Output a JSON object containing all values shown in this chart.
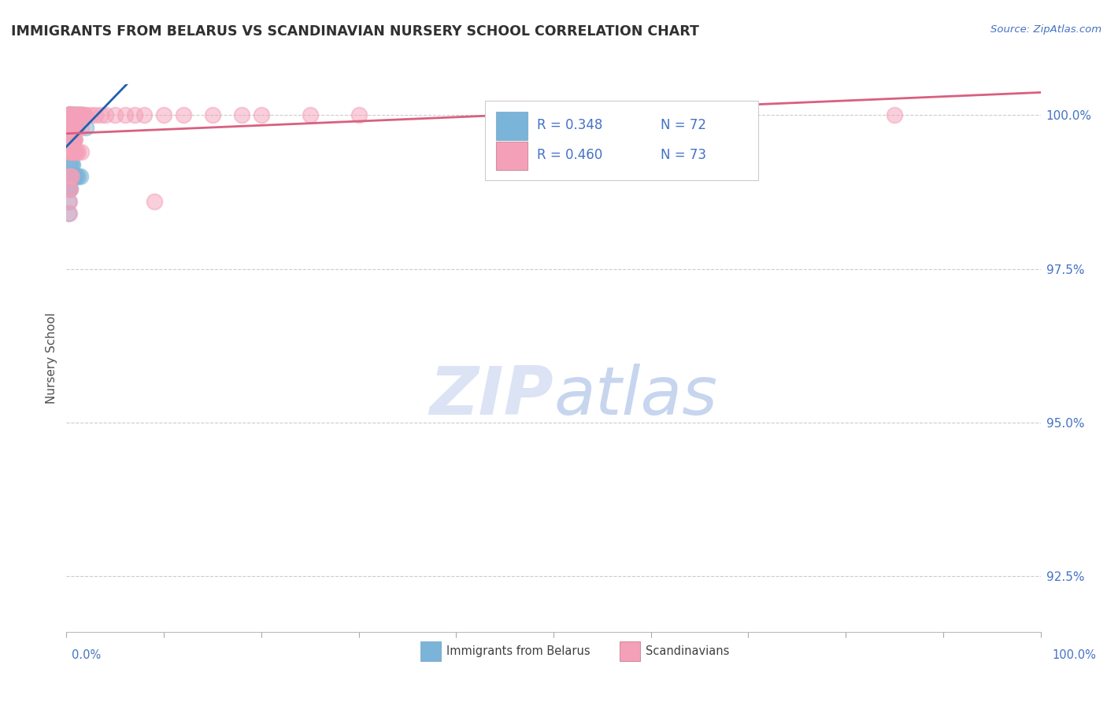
{
  "title": "IMMIGRANTS FROM BELARUS VS SCANDINAVIAN NURSERY SCHOOL CORRELATION CHART",
  "source": "Source: ZipAtlas.com",
  "ylabel": "Nursery School",
  "legend_r1": "R = 0.348",
  "legend_n1": "N = 72",
  "legend_r2": "R = 0.460",
  "legend_n2": "N = 73",
  "blue_color": "#7ab4d8",
  "pink_color": "#f4a0b8",
  "blue_line_color": "#2060b0",
  "pink_line_color": "#d86080",
  "title_color": "#303030",
  "axis_label_color": "#505050",
  "tick_label_color": "#4472c4",
  "watermark_color": "#ccd8f0",
  "grid_color": "#cccccc",
  "blue_x": [
    0.002,
    0.002,
    0.002,
    0.002,
    0.002,
    0.002,
    0.002,
    0.002,
    0.003,
    0.003,
    0.003,
    0.003,
    0.003,
    0.003,
    0.003,
    0.003,
    0.003,
    0.003,
    0.004,
    0.004,
    0.004,
    0.004,
    0.004,
    0.004,
    0.004,
    0.004,
    0.005,
    0.005,
    0.005,
    0.005,
    0.005,
    0.005,
    0.005,
    0.006,
    0.006,
    0.006,
    0.006,
    0.006,
    0.007,
    0.007,
    0.007,
    0.007,
    0.008,
    0.008,
    0.008,
    0.009,
    0.009,
    0.01,
    0.01,
    0.011,
    0.012,
    0.013,
    0.014,
    0.015,
    0.016,
    0.002,
    0.003,
    0.004,
    0.005,
    0.006,
    0.007,
    0.008,
    0.009,
    0.01,
    0.012,
    0.014,
    0.002,
    0.003,
    0.004,
    0.02,
    0.002,
    0.002
  ],
  "blue_y": [
    1.0,
    1.0,
    1.0,
    1.0,
    1.0,
    1.0,
    0.998,
    0.998,
    1.0,
    1.0,
    1.0,
    1.0,
    0.998,
    0.998,
    0.996,
    0.994,
    0.992,
    0.99,
    1.0,
    1.0,
    1.0,
    0.998,
    0.998,
    0.996,
    0.994,
    0.992,
    1.0,
    1.0,
    0.998,
    0.998,
    0.996,
    0.994,
    0.992,
    1.0,
    0.998,
    0.996,
    0.994,
    0.992,
    1.0,
    0.998,
    0.996,
    0.994,
    1.0,
    0.998,
    0.996,
    1.0,
    0.998,
    1.0,
    0.998,
    1.0,
    1.0,
    1.0,
    1.0,
    1.0,
    1.0,
    0.99,
    0.99,
    0.99,
    0.99,
    0.99,
    0.99,
    0.99,
    0.99,
    0.99,
    0.99,
    0.99,
    0.988,
    0.988,
    0.988,
    0.998,
    0.986,
    0.984
  ],
  "pink_x": [
    0.003,
    0.003,
    0.003,
    0.003,
    0.003,
    0.003,
    0.004,
    0.004,
    0.004,
    0.004,
    0.004,
    0.005,
    0.005,
    0.005,
    0.005,
    0.006,
    0.006,
    0.006,
    0.006,
    0.007,
    0.007,
    0.007,
    0.008,
    0.008,
    0.008,
    0.009,
    0.009,
    0.009,
    0.01,
    0.01,
    0.011,
    0.012,
    0.013,
    0.015,
    0.015,
    0.016,
    0.017,
    0.018,
    0.02,
    0.025,
    0.03,
    0.035,
    0.04,
    0.05,
    0.06,
    0.07,
    0.08,
    0.09,
    0.1,
    0.12,
    0.15,
    0.18,
    0.2,
    0.25,
    0.3,
    0.003,
    0.004,
    0.005,
    0.006,
    0.007,
    0.008,
    0.009,
    0.01,
    0.012,
    0.015,
    0.003,
    0.004,
    0.005,
    0.003,
    0.004,
    0.003,
    0.003,
    0.85
  ],
  "pink_y": [
    1.0,
    1.0,
    1.0,
    1.0,
    0.998,
    0.998,
    1.0,
    1.0,
    1.0,
    0.998,
    0.998,
    1.0,
    1.0,
    0.998,
    0.996,
    1.0,
    1.0,
    0.998,
    0.996,
    1.0,
    0.998,
    0.996,
    1.0,
    0.998,
    0.996,
    1.0,
    0.998,
    0.996,
    1.0,
    0.998,
    1.0,
    1.0,
    1.0,
    1.0,
    0.998,
    1.0,
    1.0,
    1.0,
    1.0,
    1.0,
    1.0,
    1.0,
    1.0,
    1.0,
    1.0,
    1.0,
    1.0,
    0.986,
    1.0,
    1.0,
    1.0,
    1.0,
    1.0,
    1.0,
    1.0,
    0.994,
    0.994,
    0.994,
    0.994,
    0.994,
    0.994,
    0.994,
    0.994,
    0.994,
    0.994,
    0.99,
    0.99,
    0.99,
    0.988,
    0.988,
    0.986,
    0.984,
    1.0
  ],
  "xmin": 0.0,
  "xmax": 1.0,
  "ymin": 0.916,
  "ymax": 1.005,
  "yticks": [
    0.925,
    0.95,
    0.975,
    1.0
  ],
  "ytick_labels": [
    "92.5%",
    "95.0%",
    "97.5%",
    "100.0%"
  ]
}
